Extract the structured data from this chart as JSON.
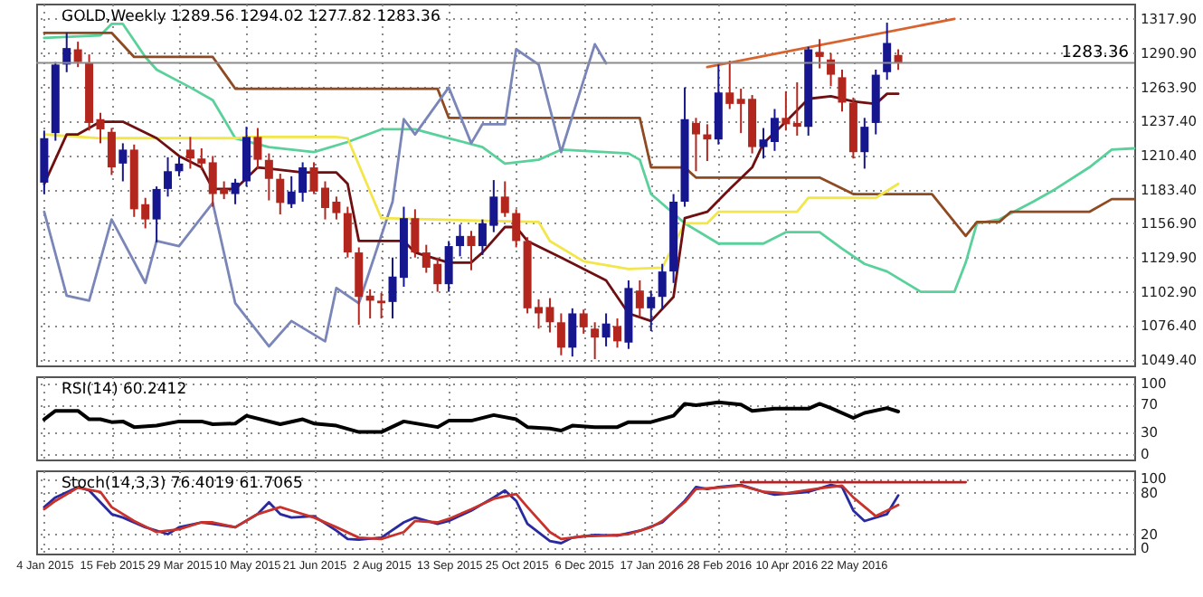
{
  "chart_data": [
    {
      "type": "candlestick",
      "title": "GOLD,Weekly 1289.56 1294.02 1277.82 1283.36",
      "tick_labels": "y",
      "grid": true,
      "xlim": [
        "2014-12-30",
        "2016-11-13"
      ],
      "xticks": [
        {
          "value": "2015-01-04",
          "label": null
        },
        {
          "value": "2015-02-15",
          "label": null
        },
        {
          "value": "2015-03-29",
          "label": null
        },
        {
          "value": "2015-05-10",
          "label": null
        },
        {
          "value": "2015-06-21",
          "label": null
        },
        {
          "value": "2015-08-02",
          "label": null
        },
        {
          "value": "2015-09-13",
          "label": null
        },
        {
          "value": "2015-10-25",
          "label": null
        },
        {
          "value": "2015-12-06",
          "label": null
        },
        {
          "value": "2016-01-17",
          "label": null
        },
        {
          "value": "2016-02-28",
          "label": null
        },
        {
          "value": "2016-04-10",
          "label": null
        },
        {
          "value": "2016-05-22",
          "label": null
        }
      ],
      "ylim": [
        1045,
        1330
      ],
      "yticks": [
        {
          "value": 1317.9,
          "label": "1317.90"
        },
        {
          "value": 1290.9,
          "label": "1290.90"
        },
        {
          "value": 1263.9,
          "label": "1263.90"
        },
        {
          "value": 1237.4,
          "label": "1237.40"
        },
        {
          "value": 1210.4,
          "label": "1210.40"
        },
        {
          "value": 1183.4,
          "label": "1183.40"
        },
        {
          "value": 1156.9,
          "label": "1156.90"
        },
        {
          "value": 1129.9,
          "label": "1129.90"
        },
        {
          "value": 1102.9,
          "label": "1102.90"
        },
        {
          "value": 1076.4,
          "label": "1076.40"
        },
        {
          "value": 1049.4,
          "label": "1049.40"
        }
      ],
      "x": [
        "2015-01-04",
        "2015-01-11",
        "2015-01-18",
        "2015-01-25",
        "2015-02-01",
        "2015-02-08",
        "2015-02-15",
        "2015-02-22",
        "2015-03-01",
        "2015-03-08",
        "2015-03-15",
        "2015-03-22",
        "2015-03-29",
        "2015-04-05",
        "2015-04-12",
        "2015-04-19",
        "2015-04-26",
        "2015-05-03",
        "2015-05-10",
        "2015-05-17",
        "2015-05-24",
        "2015-05-31",
        "2015-06-07",
        "2015-06-14",
        "2015-06-21",
        "2015-06-28",
        "2015-07-05",
        "2015-07-12",
        "2015-07-19",
        "2015-07-26",
        "2015-08-02",
        "2015-08-09",
        "2015-08-16",
        "2015-08-23",
        "2015-08-30",
        "2015-09-06",
        "2015-09-13",
        "2015-09-20",
        "2015-09-27",
        "2015-10-04",
        "2015-10-11",
        "2015-10-18",
        "2015-10-25",
        "2015-11-01",
        "2015-11-08",
        "2015-11-15",
        "2015-11-22",
        "2015-11-29",
        "2015-12-06",
        "2015-12-13",
        "2015-12-20",
        "2015-12-27",
        "2016-01-03",
        "2016-01-10",
        "2016-01-17",
        "2016-01-24",
        "2016-01-31",
        "2016-02-07",
        "2016-02-14",
        "2016-02-21",
        "2016-02-28",
        "2016-03-06",
        "2016-03-13",
        "2016-03-20",
        "2016-03-27",
        "2016-04-03",
        "2016-04-10",
        "2016-04-17",
        "2016-04-24",
        "2016-05-01",
        "2016-05-08",
        "2016-05-15",
        "2016-05-22",
        "2016-05-29",
        "2016-06-05",
        "2016-06-12",
        "2016-06-19"
      ],
      "ohlc": [
        [
          1189,
          1230,
          1180,
          1224
        ],
        [
          1228,
          1284,
          1222,
          1282
        ],
        [
          1282,
          1307,
          1276,
          1295
        ],
        [
          1294,
          1300,
          1280,
          1284
        ],
        [
          1283,
          1290,
          1230,
          1236
        ],
        [
          1239,
          1244,
          1220,
          1231
        ],
        [
          1229,
          1232,
          1195,
          1201
        ],
        [
          1204,
          1220,
          1190,
          1215
        ],
        [
          1215,
          1219,
          1162,
          1168
        ],
        [
          1172,
          1177,
          1153,
          1160
        ],
        [
          1160,
          1186,
          1142,
          1184
        ],
        [
          1184,
          1209,
          1178,
          1198
        ],
        [
          1198,
          1209,
          1194,
          1204
        ],
        [
          1215,
          1225,
          1200,
          1208
        ],
        [
          1208,
          1216,
          1199,
          1204
        ],
        [
          1205,
          1210,
          1170,
          1180
        ],
        [
          1184,
          1190,
          1176,
          1180
        ],
        [
          1180,
          1192,
          1172,
          1189
        ],
        [
          1190,
          1233,
          1186,
          1225
        ],
        [
          1225,
          1232,
          1200,
          1207
        ],
        [
          1207,
          1212,
          1175,
          1192
        ],
        [
          1192,
          1196,
          1164,
          1173
        ],
        [
          1172,
          1194,
          1169,
          1182
        ],
        [
          1181,
          1205,
          1174,
          1201
        ],
        [
          1201,
          1205,
          1180,
          1182
        ],
        [
          1185,
          1190,
          1160,
          1169
        ],
        [
          1174,
          1178,
          1160,
          1165
        ],
        [
          1165,
          1170,
          1130,
          1134
        ],
        [
          1134,
          1138,
          1077,
          1099
        ],
        [
          1100,
          1105,
          1082,
          1096
        ],
        [
          1096,
          1102,
          1082,
          1094
        ],
        [
          1095,
          1130,
          1082,
          1115
        ],
        [
          1114,
          1170,
          1107,
          1161
        ],
        [
          1161,
          1168,
          1130,
          1134
        ],
        [
          1134,
          1140,
          1118,
          1122
        ],
        [
          1125,
          1130,
          1103,
          1109
        ],
        [
          1109,
          1143,
          1103,
          1139
        ],
        [
          1139,
          1156,
          1131,
          1147
        ],
        [
          1147,
          1151,
          1120,
          1139
        ],
        [
          1139,
          1160,
          1132,
          1157
        ],
        [
          1155,
          1191,
          1150,
          1178
        ],
        [
          1178,
          1190,
          1162,
          1165
        ],
        [
          1165,
          1168,
          1138,
          1143
        ],
        [
          1143,
          1146,
          1086,
          1090
        ],
        [
          1091,
          1097,
          1074,
          1086
        ],
        [
          1091,
          1098,
          1071,
          1079
        ],
        [
          1079,
          1086,
          1053,
          1059
        ],
        [
          1059,
          1090,
          1052,
          1086
        ],
        [
          1086,
          1089,
          1070,
          1075
        ],
        [
          1074,
          1079,
          1050,
          1067
        ],
        [
          1067,
          1086,
          1060,
          1078
        ],
        [
          1076,
          1082,
          1059,
          1064
        ],
        [
          1063,
          1112,
          1058,
          1106
        ],
        [
          1104,
          1112,
          1083,
          1090
        ],
        [
          1090,
          1104,
          1072,
          1099
        ],
        [
          1099,
          1125,
          1089,
          1119
        ],
        [
          1119,
          1180,
          1110,
          1174
        ],
        [
          1174,
          1264,
          1170,
          1239
        ],
        [
          1236,
          1240,
          1198,
          1227
        ],
        [
          1227,
          1235,
          1206,
          1223
        ],
        [
          1223,
          1282,
          1219,
          1260
        ],
        [
          1260,
          1285,
          1247,
          1251
        ],
        [
          1255,
          1263,
          1228,
          1251
        ],
        [
          1255,
          1258,
          1212,
          1217
        ],
        [
          1217,
          1232,
          1208,
          1223
        ],
        [
          1221,
          1247,
          1214,
          1240
        ],
        [
          1240,
          1261,
          1230,
          1235
        ],
        [
          1236,
          1268,
          1226,
          1233
        ],
        [
          1233,
          1296,
          1226,
          1294
        ],
        [
          1292,
          1302,
          1279,
          1288
        ],
        [
          1286,
          1291,
          1265,
          1274
        ],
        [
          1272,
          1278,
          1245,
          1252
        ],
        [
          1252,
          1256,
          1208,
          1213
        ],
        [
          1213,
          1240,
          1200,
          1233
        ],
        [
          1236,
          1278,
          1227,
          1274
        ],
        [
          1276,
          1315,
          1270,
          1299
        ],
        [
          1289.56,
          1294.02,
          1277.82,
          1283.36
        ]
      ],
      "colors": [
        "#16168f",
        "#16168f",
        "#16168f",
        "#b3261e",
        "#b3261e",
        "#b3261e",
        "#b3261e",
        "#16168f",
        "#b3261e",
        "#b3261e",
        "#16168f",
        "#16168f",
        "#16168f",
        "#b3261e",
        "#b3261e",
        "#b3261e",
        "#b3261e",
        "#16168f",
        "#16168f",
        "#b3261e",
        "#b3261e",
        "#b3261e",
        "#16168f",
        "#16168f",
        "#b3261e",
        "#b3261e",
        "#b3261e",
        "#b3261e",
        "#b3261e",
        "#b3261e",
        "#b3261e",
        "#16168f",
        "#16168f",
        "#b3261e",
        "#b3261e",
        "#b3261e",
        "#16168f",
        "#16168f",
        "#b3261e",
        "#16168f",
        "#16168f",
        "#b3261e",
        "#b3261e",
        "#b3261e",
        "#b3261e",
        "#b3261e",
        "#b3261e",
        "#16168f",
        "#b3261e",
        "#b3261e",
        "#16168f",
        "#b3261e",
        "#16168f",
        "#b3261e",
        "#16168f",
        "#16168f",
        "#16168f",
        "#16168f",
        "#b3261e",
        "#b3261e",
        "#16168f",
        "#b3261e",
        "#b3261e",
        "#b3261e",
        "#16168f",
        "#16168f",
        "#b3261e",
        "#b3261e",
        "#16168f",
        "#b3261e",
        "#b3261e",
        "#b3261e",
        "#b3261e",
        "#16168f",
        "#16168f",
        "#16168f",
        "#b3261e"
      ],
      "series": [
        {
          "type": "line",
          "color": "#5ad19a",
          "x": [
            "2015-01-04",
            "2015-02-08",
            "2015-02-15",
            "2015-02-22",
            "2015-03-08",
            "2015-03-15",
            "2015-04-05",
            "2015-04-19",
            "2015-05-03",
            "2015-05-24",
            "2015-06-21",
            "2015-07-12",
            "2015-08-02",
            "2015-08-23",
            "2015-09-13",
            "2015-10-04",
            "2015-10-18",
            "2015-11-08",
            "2015-11-22",
            "2016-01-03",
            "2016-01-10",
            "2016-01-17",
            "2016-02-07",
            "2016-02-28",
            "2016-03-27",
            "2016-04-10",
            "2016-05-01",
            "2016-05-15",
            "2016-05-29",
            "2016-06-12",
            "2016-07-03",
            "2016-07-24",
            "2016-07-31",
            "2016-08-07",
            "2016-08-21",
            "2016-09-11",
            "2016-09-25",
            "2016-10-16",
            "2016-10-30",
            "2016-11-13"
          ],
          "values": [
            1303,
            1305,
            1314,
            1314,
            1288,
            1278,
            1264,
            1254,
            1224,
            1217,
            1213,
            1221,
            1231,
            1231,
            1224,
            1217,
            1204,
            1207,
            1215,
            1212,
            1207,
            1180,
            1157,
            1141,
            1141,
            1150,
            1150,
            1137,
            1125,
            1119,
            1103,
            1103,
            1126,
            1157,
            1160,
            1174,
            1184,
            1201,
            1215,
            1216
          ]
        },
        {
          "type": "line",
          "color": "#8e4a22",
          "x": [
            "2015-01-04",
            "2015-02-15",
            "2015-03-01",
            "2015-04-19",
            "2015-05-03",
            "2015-09-06",
            "2015-09-13",
            "2016-01-10",
            "2016-01-17",
            "2016-02-07",
            "2016-02-14",
            "2016-05-01",
            "2016-05-22",
            "2016-07-10",
            "2016-07-31",
            "2016-08-07",
            "2016-08-21",
            "2016-08-28",
            "2016-10-16",
            "2016-10-30",
            "2016-11-13"
          ],
          "values": [
            1307,
            1307,
            1288,
            1288,
            1263,
            1263,
            1240,
            1240,
            1201,
            1201,
            1193,
            1193,
            1180,
            1180,
            1147,
            1158,
            1158,
            1166,
            1166,
            1176,
            1176
          ]
        },
        {
          "type": "line",
          "color": "#7a86b8",
          "x": [
            "2015-01-04",
            "2015-01-18",
            "2015-02-01",
            "2015-02-15",
            "2015-03-08",
            "2015-03-15",
            "2015-03-29",
            "2015-04-19",
            "2015-05-03",
            "2015-05-24",
            "2015-06-07",
            "2015-06-28",
            "2015-07-05",
            "2015-07-19",
            "2015-08-09",
            "2015-08-16",
            "2015-08-23",
            "2015-09-13",
            "2015-09-27",
            "2015-10-04",
            "2015-10-18",
            "2015-10-25",
            "2015-11-08",
            "2015-11-22",
            "2015-12-13",
            "2015-12-20"
          ],
          "values": [
            1166,
            1100,
            1096,
            1160,
            1110,
            1143,
            1139,
            1173,
            1094,
            1060,
            1080,
            1064,
            1106,
            1094,
            1174,
            1239,
            1227,
            1264,
            1220,
            1235,
            1235,
            1294,
            1282,
            1213,
            1298,
            1283
          ]
        },
        {
          "type": "line",
          "color": "#f2e64b",
          "x": [
            "2015-01-04",
            "2015-02-08",
            "2015-05-03",
            "2015-05-10",
            "2015-07-05",
            "2015-07-12",
            "2015-08-02",
            "2015-11-08",
            "2015-11-15",
            "2015-12-06",
            "2016-01-03",
            "2016-01-24",
            "2016-02-07",
            "2016-02-21",
            "2016-02-28",
            "2016-04-17",
            "2016-04-24",
            "2016-06-05",
            "2016-06-19"
          ],
          "values": [
            1227,
            1224,
            1224,
            1225,
            1225,
            1224,
            1161,
            1158,
            1143,
            1127,
            1121,
            1122,
            1157,
            1157,
            1166,
            1166,
            1177,
            1177,
            1188
          ]
        },
        {
          "type": "line",
          "color": "#6e0f12",
          "x": [
            "2015-01-04",
            "2015-01-18",
            "2015-01-25",
            "2015-02-08",
            "2015-02-22",
            "2015-03-15",
            "2015-03-29",
            "2015-04-12",
            "2015-04-19",
            "2015-05-03",
            "2015-05-17",
            "2015-05-24",
            "2015-06-14",
            "2015-07-05",
            "2015-07-12",
            "2015-07-19",
            "2015-08-16",
            "2015-08-23",
            "2015-09-13",
            "2015-09-27",
            "2015-10-04",
            "2015-10-18",
            "2015-10-25",
            "2015-11-01",
            "2015-11-22",
            "2015-12-20",
            "2016-01-03",
            "2016-01-17",
            "2016-01-31",
            "2016-02-07",
            "2016-02-21",
            "2016-03-06",
            "2016-03-20",
            "2016-03-27",
            "2016-04-10",
            "2016-04-24",
            "2016-05-08",
            "2016-05-22",
            "2016-06-05",
            "2016-06-12",
            "2016-06-19"
          ],
          "values": [
            1188,
            1227,
            1227,
            1237,
            1237,
            1224,
            1210,
            1201,
            1184,
            1184,
            1201,
            1200,
            1197,
            1197,
            1188,
            1143,
            1143,
            1134,
            1126,
            1126,
            1134,
            1154,
            1154,
            1143,
            1130,
            1112,
            1086,
            1080,
            1099,
            1161,
            1166,
            1184,
            1201,
            1220,
            1237,
            1255,
            1257,
            1253,
            1251,
            1259,
            1259
          ]
        },
        {
          "type": "line",
          "color": "#d9632f",
          "x": [
            "2016-02-21",
            "2016-07-24"
          ],
          "values": [
            1280,
            1318
          ]
        }
      ],
      "ref_lines": [
        {
          "axis": "y",
          "value": 1283.36,
          "label": "1283.36",
          "color": "#8c8c8c"
        }
      ]
    },
    {
      "type": "line",
      "title": "RSI(14) 60.2412",
      "tick_labels": "y",
      "grid": true,
      "xlim": [
        "2014-12-30",
        "2016-11-13"
      ],
      "xticks": [
        {
          "value": "2015-01-04",
          "label": null
        },
        {
          "value": "2015-02-15",
          "label": null
        },
        {
          "value": "2015-03-29",
          "label": null
        },
        {
          "value": "2015-05-10",
          "label": null
        },
        {
          "value": "2015-06-21",
          "label": null
        },
        {
          "value": "2015-08-02",
          "label": null
        },
        {
          "value": "2015-09-13",
          "label": null
        },
        {
          "value": "2015-10-25",
          "label": null
        },
        {
          "value": "2015-12-06",
          "label": null
        },
        {
          "value": "2016-01-17",
          "label": null
        },
        {
          "value": "2016-02-28",
          "label": null
        },
        {
          "value": "2016-04-10",
          "label": null
        },
        {
          "value": "2016-05-22",
          "label": null
        }
      ],
      "ylim": [
        -8,
        110
      ],
      "yticks": [
        0,
        30,
        70,
        100
      ],
      "series": [
        {
          "color": "#000000",
          "x": [
            "2015-01-04",
            "2015-01-11",
            "2015-01-25",
            "2015-02-01",
            "2015-02-08",
            "2015-02-15",
            "2015-02-22",
            "2015-03-01",
            "2015-03-15",
            "2015-03-29",
            "2015-04-12",
            "2015-04-19",
            "2015-05-03",
            "2015-05-10",
            "2015-05-31",
            "2015-06-14",
            "2015-06-21",
            "2015-07-05",
            "2015-07-19",
            "2015-08-02",
            "2015-08-16",
            "2015-09-06",
            "2015-09-13",
            "2015-09-27",
            "2015-10-11",
            "2015-10-25",
            "2015-11-01",
            "2015-11-15",
            "2015-11-22",
            "2015-11-29",
            "2015-12-13",
            "2015-12-27",
            "2016-01-03",
            "2016-01-17",
            "2016-01-31",
            "2016-02-07",
            "2016-02-14",
            "2016-02-28",
            "2016-03-13",
            "2016-03-20",
            "2016-04-03",
            "2016-04-24",
            "2016-05-01",
            "2016-05-08",
            "2016-05-22",
            "2016-05-29",
            "2016-06-12",
            "2016-06-19"
          ],
          "values": [
            49,
            61,
            61,
            49,
            49,
            45,
            46,
            38,
            40,
            46,
            46,
            42,
            43,
            54,
            42,
            49,
            43,
            40,
            31,
            31,
            46,
            38,
            47,
            47,
            55,
            49,
            38,
            36,
            33,
            40,
            38,
            38,
            45,
            45,
            54,
            71,
            69,
            73,
            70,
            61,
            64,
            64,
            71,
            65,
            51,
            58,
            65,
            60
          ]
        }
      ]
    },
    {
      "type": "line",
      "title": "Stoch(14,3,3) 76.4019 61.7065",
      "grid": true,
      "xlim": [
        "2014-12-30",
        "2016-11-13"
      ],
      "xticks": [
        {
          "value": "2015-01-04",
          "label": "4 Jan 2015"
        },
        {
          "value": "2015-02-15",
          "label": "15 Feb 2015"
        },
        {
          "value": "2015-03-29",
          "label": "29 Mar 2015"
        },
        {
          "value": "2015-05-10",
          "label": "10 May 2015"
        },
        {
          "value": "2015-06-21",
          "label": "21 Jun 2015"
        },
        {
          "value": "2015-08-02",
          "label": "2 Aug 2015"
        },
        {
          "value": "2015-09-13",
          "label": "13 Sep 2015"
        },
        {
          "value": "2015-10-25",
          "label": "25 Oct 2015"
        },
        {
          "value": "2015-12-06",
          "label": "6 Dec 2015"
        },
        {
          "value": "2016-01-17",
          "label": "17 Jan 2016"
        },
        {
          "value": "2016-02-28",
          "label": "28 Feb 2016"
        },
        {
          "value": "2016-04-10",
          "label": "10 Apr 2016"
        },
        {
          "value": "2016-05-22",
          "label": "22 May 2016"
        }
      ],
      "ylim": [
        -8,
        112
      ],
      "yticks": [
        0,
        20,
        80,
        100
      ],
      "series": [
        {
          "color": "#2a2aa0",
          "x": [
            "2015-01-04",
            "2015-01-11",
            "2015-01-25",
            "2015-02-01",
            "2015-02-15",
            "2015-02-22",
            "2015-03-08",
            "2015-03-22",
            "2015-03-29",
            "2015-04-12",
            "2015-04-19",
            "2015-05-03",
            "2015-05-17",
            "2015-05-24",
            "2015-05-31",
            "2015-06-07",
            "2015-06-21",
            "2015-07-05",
            "2015-07-12",
            "2015-07-19",
            "2015-08-02",
            "2015-08-16",
            "2015-08-23",
            "2015-09-06",
            "2015-09-13",
            "2015-09-27",
            "2015-10-11",
            "2015-10-18",
            "2015-10-25",
            "2015-11-01",
            "2015-11-15",
            "2015-11-22",
            "2015-11-29",
            "2015-12-13",
            "2015-12-27",
            "2016-01-10",
            "2016-01-24",
            "2016-02-07",
            "2016-02-14",
            "2016-02-21",
            "2016-02-28",
            "2016-03-13",
            "2016-03-27",
            "2016-04-03",
            "2016-04-24",
            "2016-05-08",
            "2016-05-15",
            "2016-05-22",
            "2016-05-29",
            "2016-06-12",
            "2016-06-19"
          ],
          "values": [
            59,
            73,
            88,
            83,
            49,
            44,
            30,
            20,
            30,
            37,
            35,
            30,
            49,
            66,
            49,
            44,
            46,
            25,
            13,
            12,
            15,
            37,
            44,
            35,
            39,
            54,
            73,
            83,
            68,
            35,
            10,
            7,
            15,
            19,
            18,
            25,
            37,
            68,
            88,
            85,
            88,
            91,
            81,
            77,
            81,
            91,
            88,
            54,
            39,
            49,
            76
          ]
        },
        {
          "color": "#c8322a",
          "x": [
            "2015-01-04",
            "2015-01-11",
            "2015-01-25",
            "2015-02-08",
            "2015-02-15",
            "2015-03-01",
            "2015-03-15",
            "2015-03-29",
            "2015-04-12",
            "2015-04-19",
            "2015-05-03",
            "2015-05-17",
            "2015-05-31",
            "2015-06-07",
            "2015-06-21",
            "2015-07-05",
            "2015-07-19",
            "2015-08-02",
            "2015-08-16",
            "2015-08-23",
            "2015-09-06",
            "2015-09-13",
            "2015-09-27",
            "2015-10-11",
            "2015-10-25",
            "2015-11-01",
            "2015-11-15",
            "2015-11-22",
            "2015-12-06",
            "2015-12-20",
            "2016-01-03",
            "2016-01-17",
            "2016-01-24",
            "2016-02-07",
            "2016-02-14",
            "2016-02-28",
            "2016-03-13",
            "2016-03-27",
            "2016-04-10",
            "2016-05-01",
            "2016-05-15",
            "2016-05-22",
            "2016-06-05",
            "2016-06-12",
            "2016-06-19"
          ],
          "values": [
            56,
            68,
            87,
            81,
            59,
            39,
            23,
            27,
            37,
            37,
            30,
            49,
            59,
            54,
            44,
            30,
            15,
            13,
            23,
            39,
            37,
            42,
            56,
            71,
            78,
            59,
            23,
            13,
            17,
            18,
            20,
            30,
            39,
            66,
            85,
            87,
            90,
            81,
            79,
            86,
            90,
            73,
            46,
            54,
            62
          ]
        },
        {
          "color": "#b22222",
          "x": [
            "2016-03-13",
            "2016-07-31"
          ],
          "values": [
            95,
            95
          ]
        }
      ]
    }
  ]
}
